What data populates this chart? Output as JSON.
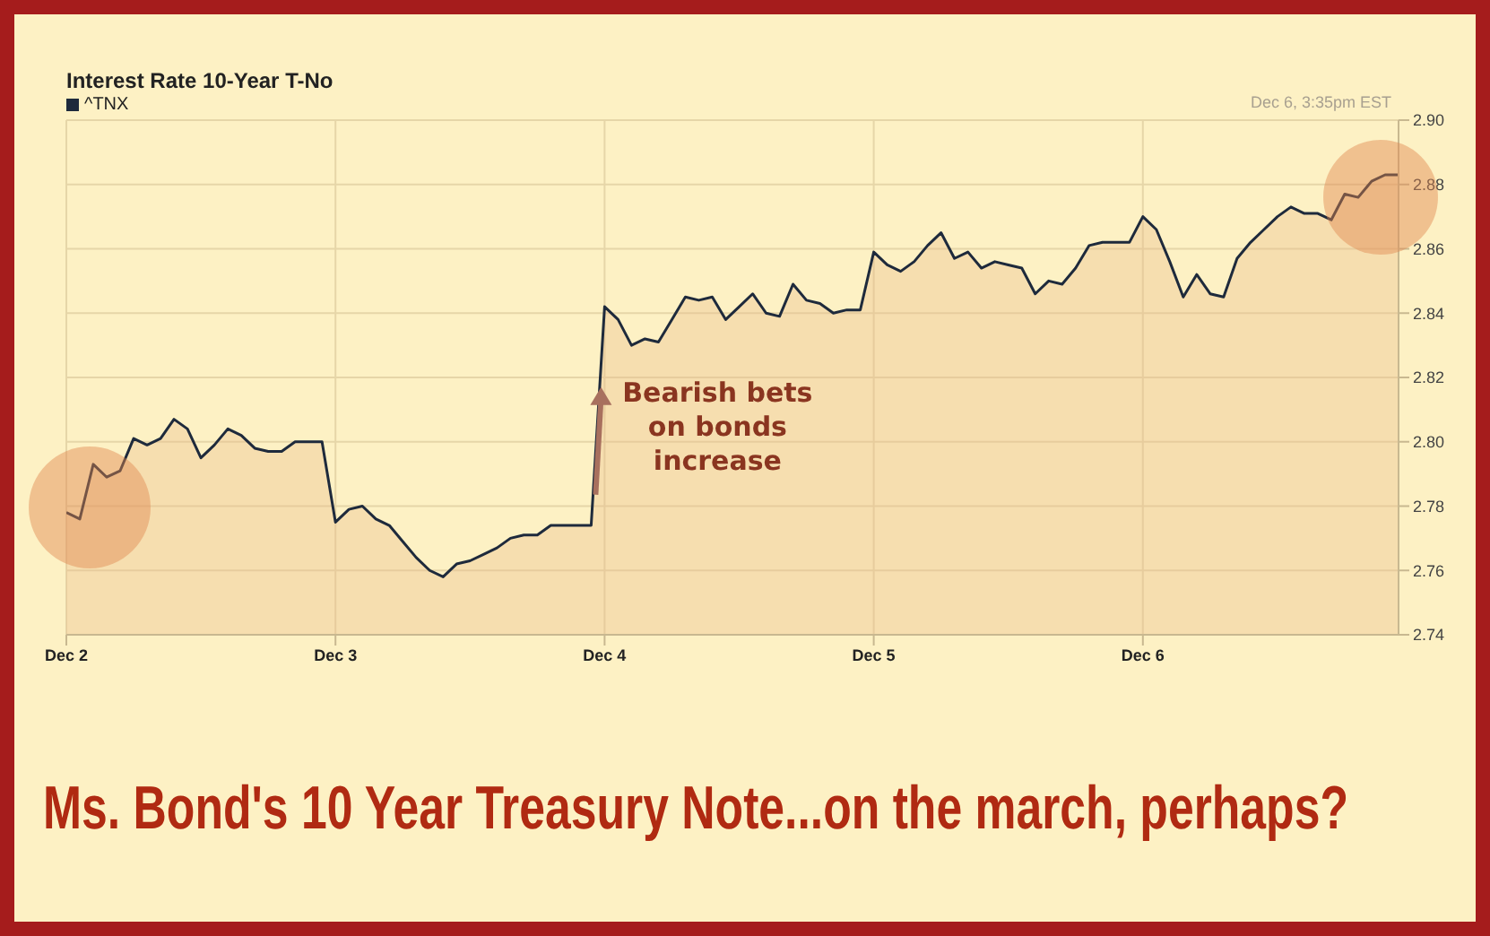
{
  "chart_data": {
    "type": "area",
    "title": "Interest Rate 10-Year T-No",
    "annotations": [
      "Dec 6, 3:35pm EST",
      "Ms. Bond's 10 Year Treasury Note...on the march, perhaps?",
      {
        "text": "Bearish bets on bonds increase",
        "x": "Dec 4",
        "y": 2.817
      }
    ],
    "categories": [
      "Dec 2",
      null,
      null,
      null,
      null,
      null,
      null,
      null,
      null,
      null,
      null,
      null,
      null,
      null,
      null,
      null,
      null,
      null,
      null,
      null,
      "Dec 3",
      null,
      null,
      null,
      null,
      null,
      null,
      null,
      null,
      null,
      null,
      null,
      null,
      null,
      null,
      null,
      null,
      null,
      null,
      null,
      "Dec 4",
      null,
      null,
      null,
      null,
      null,
      null,
      null,
      null,
      null,
      null,
      null,
      null,
      null,
      null,
      null,
      null,
      null,
      null,
      null,
      "Dec 5",
      null,
      null,
      null,
      null,
      null,
      null,
      null,
      null,
      null,
      null,
      null,
      null,
      null,
      null,
      null,
      null,
      null,
      null,
      null,
      "Dec 6",
      null,
      null,
      null,
      null,
      null,
      null,
      null,
      null,
      null,
      null,
      null,
      null,
      null,
      null,
      null,
      null,
      null,
      null,
      null
    ],
    "series": [
      {
        "name": "^TNX",
        "color": "#1e2a3c",
        "values": [
          2.778,
          2.776,
          2.793,
          2.789,
          2.791,
          2.801,
          2.799,
          2.801,
          2.807,
          2.804,
          2.795,
          2.799,
          2.804,
          2.802,
          2.798,
          2.797,
          2.797,
          2.8,
          2.8,
          2.8,
          2.775,
          2.779,
          2.78,
          2.776,
          2.774,
          2.769,
          2.764,
          2.76,
          2.758,
          2.762,
          2.763,
          2.765,
          2.767,
          2.77,
          2.771,
          2.771,
          2.774,
          2.774,
          2.774,
          2.774,
          2.842,
          2.838,
          2.83,
          2.832,
          2.831,
          2.838,
          2.845,
          2.844,
          2.845,
          2.838,
          2.842,
          2.846,
          2.84,
          2.839,
          2.849,
          2.844,
          2.843,
          2.84,
          2.841,
          2.841,
          2.859,
          2.855,
          2.853,
          2.856,
          2.861,
          2.865,
          2.857,
          2.859,
          2.854,
          2.856,
          2.855,
          2.854,
          2.846,
          2.85,
          2.849,
          2.854,
          2.861,
          2.862,
          2.862,
          2.862,
          2.87,
          2.866,
          2.856,
          2.845,
          2.852,
          2.846,
          2.845,
          2.857,
          2.862,
          2.866,
          2.87,
          2.873,
          2.871,
          2.871,
          2.869,
          2.877,
          2.876,
          2.881,
          2.883,
          2.883
        ]
      }
    ],
    "ylim": [
      2.74,
      2.9
    ],
    "yticks": [
      {
        "value": 2.74,
        "label": "2.74"
      },
      {
        "value": 2.76,
        "label": "2.76"
      },
      {
        "value": 2.78,
        "label": "2.78"
      },
      {
        "value": 2.8,
        "label": "2.80"
      },
      {
        "value": 2.82,
        "label": "2.82"
      },
      {
        "value": 2.84,
        "label": "2.84"
      },
      {
        "value": 2.86,
        "label": "2.86"
      },
      {
        "value": 2.88,
        "label": "2.88"
      },
      {
        "value": 2.9,
        "label": "2.90"
      }
    ],
    "grid": true,
    "legend": "top left"
  }
}
